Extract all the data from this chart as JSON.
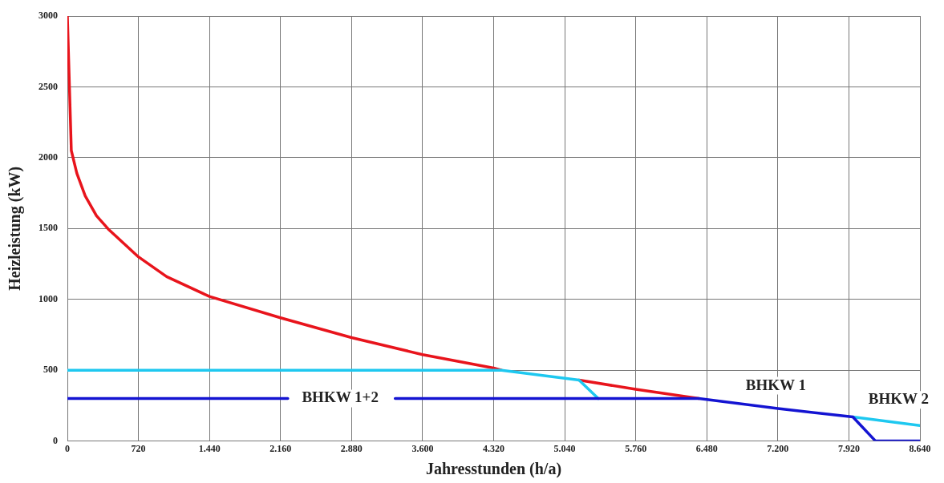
{
  "chart_data": {
    "type": "line",
    "xlabel": "Jahresstunden (h/a)",
    "ylabel": "Heizleistung (kW)",
    "xlim": [
      0,
      8640
    ],
    "ylim": [
      0,
      3000
    ],
    "xticks": [
      0,
      {
        "value": 720,
        "label": "720"
      },
      {
        "value": 1440,
        "label": "1.440"
      },
      {
        "value": 2160,
        "label": "2.160"
      },
      {
        "value": 2880,
        "label": "2.880"
      },
      {
        "value": 3600,
        "label": "3.600"
      },
      {
        "value": 4320,
        "label": "4.320"
      },
      {
        "value": 5040,
        "label": "5.040"
      },
      {
        "value": 5760,
        "label": "5.760"
      },
      {
        "value": 6480,
        "label": "6.480"
      },
      {
        "value": 7200,
        "label": "7.200"
      },
      {
        "value": 7920,
        "label": "7.920"
      },
      {
        "value": 8640,
        "label": "8.640"
      }
    ],
    "yticks": [
      0,
      500,
      1000,
      1500,
      2000,
      2500,
      3000
    ],
    "grid": true,
    "legend": false,
    "marker": "none",
    "line_style": "solid",
    "series": [
      {
        "color": "#e8141c",
        "x": [
          0,
          40,
          96,
          181,
          295,
          423,
          720,
          1006,
          1440,
          2160,
          2880,
          3600,
          4320,
          4400,
          4800,
          5185,
          5760,
          6400
        ],
        "values": [
          3000,
          2050,
          1890,
          1730,
          1590,
          1490,
          1300,
          1160,
          1020,
          870,
          730,
          610,
          515,
          500,
          null,
          430,
          365,
          300
        ]
      },
      {
        "color": "#1ec8f0",
        "x": [
          0,
          4400,
          5185,
          5380,
          6600,
          7960,
          8640
        ],
        "values": [
          500,
          500,
          430,
          300,
          null,
          170,
          110
        ]
      },
      {
        "color": "#1414d2",
        "x": [
          0,
          2234,
          2770,
          3322,
          6400,
          7200,
          7960,
          8190,
          8640
        ],
        "values": [
          300,
          300,
          null,
          300,
          300,
          230,
          170,
          0,
          0
        ]
      }
    ],
    "annotations": [
      "BHKW 1+2",
      "BHKW 1",
      "BHKW 2"
    ]
  }
}
